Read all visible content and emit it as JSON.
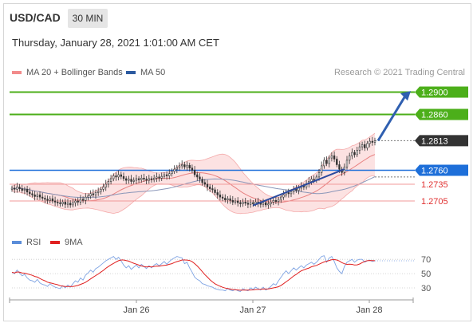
{
  "header": {
    "symbol": "USD/CAD",
    "interval": "30 MIN",
    "datetime": "Thursday, January 28, 2021 1:01:00 AM CET",
    "copyright": "Research © 2021 Trading Central"
  },
  "legend_price": [
    {
      "label": "MA 20 + Bollinger Bands",
      "color": "#f28b8b"
    },
    {
      "label": "MA 50",
      "color": "#2c5aa0"
    }
  ],
  "legend_rsi": [
    {
      "label": "RSI",
      "color": "#5b8dd9"
    },
    {
      "label": "9MA",
      "color": "#e02020"
    }
  ],
  "levels": [
    {
      "label": "1.2900",
      "value": 1.29,
      "kind": "resistance",
      "color": "#4caf1a"
    },
    {
      "label": "1.2860",
      "value": 1.286,
      "kind": "resistance",
      "color": "#4caf1a"
    },
    {
      "label": "1.2813",
      "value": 1.2813,
      "kind": "last",
      "color": "#333333"
    },
    {
      "label": "1.2760",
      "value": 1.276,
      "kind": "pivot",
      "color": "#1e6fd9"
    },
    {
      "label": "1.2735",
      "value": 1.2735,
      "kind": "support",
      "color": "#e03030"
    },
    {
      "label": "1.2705",
      "value": 1.2705,
      "kind": "support",
      "color": "#e03030"
    }
  ],
  "x_labels": [
    "Jan 26",
    "Jan 27",
    "Jan 28"
  ],
  "rsi_levels": [
    "70",
    "50",
    "30"
  ],
  "chart_data": {
    "type": "candlestick",
    "price_range": [
      1.2665,
      1.2915
    ],
    "rsi_range": [
      20,
      78
    ],
    "closes": [
      1.2728,
      1.2726,
      1.273,
      1.2727,
      1.2724,
      1.2726,
      1.2721,
      1.2718,
      1.2716,
      1.2713,
      1.2716,
      1.2712,
      1.271,
      1.2708,
      1.2706,
      1.2709,
      1.2705,
      1.2703,
      1.2702,
      1.27,
      1.2703,
      1.2699,
      1.2701,
      1.2698,
      1.2702,
      1.2705,
      1.2703,
      1.2708,
      1.2706,
      1.2712,
      1.2714,
      1.2718,
      1.2716,
      1.272,
      1.2722,
      1.2726,
      1.273,
      1.2735,
      1.274,
      1.2745,
      1.275,
      1.2748,
      1.2752,
      1.2749,
      1.2745,
      1.2742,
      1.2744,
      1.274,
      1.2742,
      1.2745,
      1.2743,
      1.2746,
      1.2744,
      1.2742,
      1.2745,
      1.2743,
      1.2746,
      1.2748,
      1.2746,
      1.2749,
      1.2752,
      1.275,
      1.2754,
      1.2758,
      1.2762,
      1.2765,
      1.2768,
      1.277,
      1.2766,
      1.2769,
      1.2764,
      1.276,
      1.2752,
      1.2748,
      1.2744,
      1.2738,
      1.2735,
      1.273,
      1.2727,
      1.2725,
      1.272,
      1.2716,
      1.2712,
      1.271,
      1.2707,
      1.2709,
      1.2706,
      1.2703,
      1.2705,
      1.2702,
      1.27,
      1.2703,
      1.2701,
      1.2699,
      1.2702,
      1.27,
      1.2703,
      1.2701,
      1.2699,
      1.2702,
      1.2698,
      1.27,
      1.2703,
      1.2706,
      1.2704,
      1.2708,
      1.2712,
      1.2716,
      1.272,
      1.2718,
      1.2722,
      1.2726,
      1.2724,
      1.2728,
      1.2732,
      1.273,
      1.2736,
      1.274,
      1.2744,
      1.2742,
      1.2748,
      1.2756,
      1.2768,
      1.2778,
      1.2772,
      1.2782,
      1.2786,
      1.278,
      1.277,
      1.2762,
      1.2756,
      1.2766,
      1.2778,
      1.2786,
      1.2792,
      1.2788,
      1.2796,
      1.2802,
      1.2806,
      1.28,
      1.2808,
      1.2812,
      1.281,
      1.2813
    ],
    "rsi": [
      52,
      50,
      55,
      51,
      47,
      49,
      44,
      41,
      40,
      38,
      42,
      37,
      35,
      34,
      32,
      36,
      33,
      31,
      30,
      29,
      33,
      30,
      34,
      31,
      36,
      40,
      38,
      44,
      41,
      48,
      51,
      55,
      52,
      57,
      59,
      62,
      65,
      68,
      70,
      72,
      74,
      70,
      73,
      68,
      62,
      58,
      61,
      56,
      59,
      62,
      58,
      63,
      60,
      57,
      61,
      58,
      62,
      64,
      61,
      64,
      67,
      63,
      67,
      70,
      72,
      74,
      73,
      72,
      64,
      66,
      58,
      52,
      45,
      42,
      40,
      36,
      35,
      33,
      32,
      31,
      29,
      28,
      27,
      27,
      26,
      29,
      27,
      26,
      28,
      26,
      25,
      29,
      27,
      26,
      30,
      28,
      31,
      29,
      27,
      31,
      27,
      29,
      32,
      36,
      34,
      40,
      45,
      50,
      54,
      50,
      54,
      58,
      55,
      58,
      61,
      58,
      62,
      64,
      66,
      63,
      66,
      70,
      74,
      75,
      66,
      72,
      74,
      67,
      58,
      53,
      50,
      60,
      66,
      68,
      70,
      66,
      69,
      70,
      70,
      66,
      68,
      69,
      67,
      68
    ]
  }
}
